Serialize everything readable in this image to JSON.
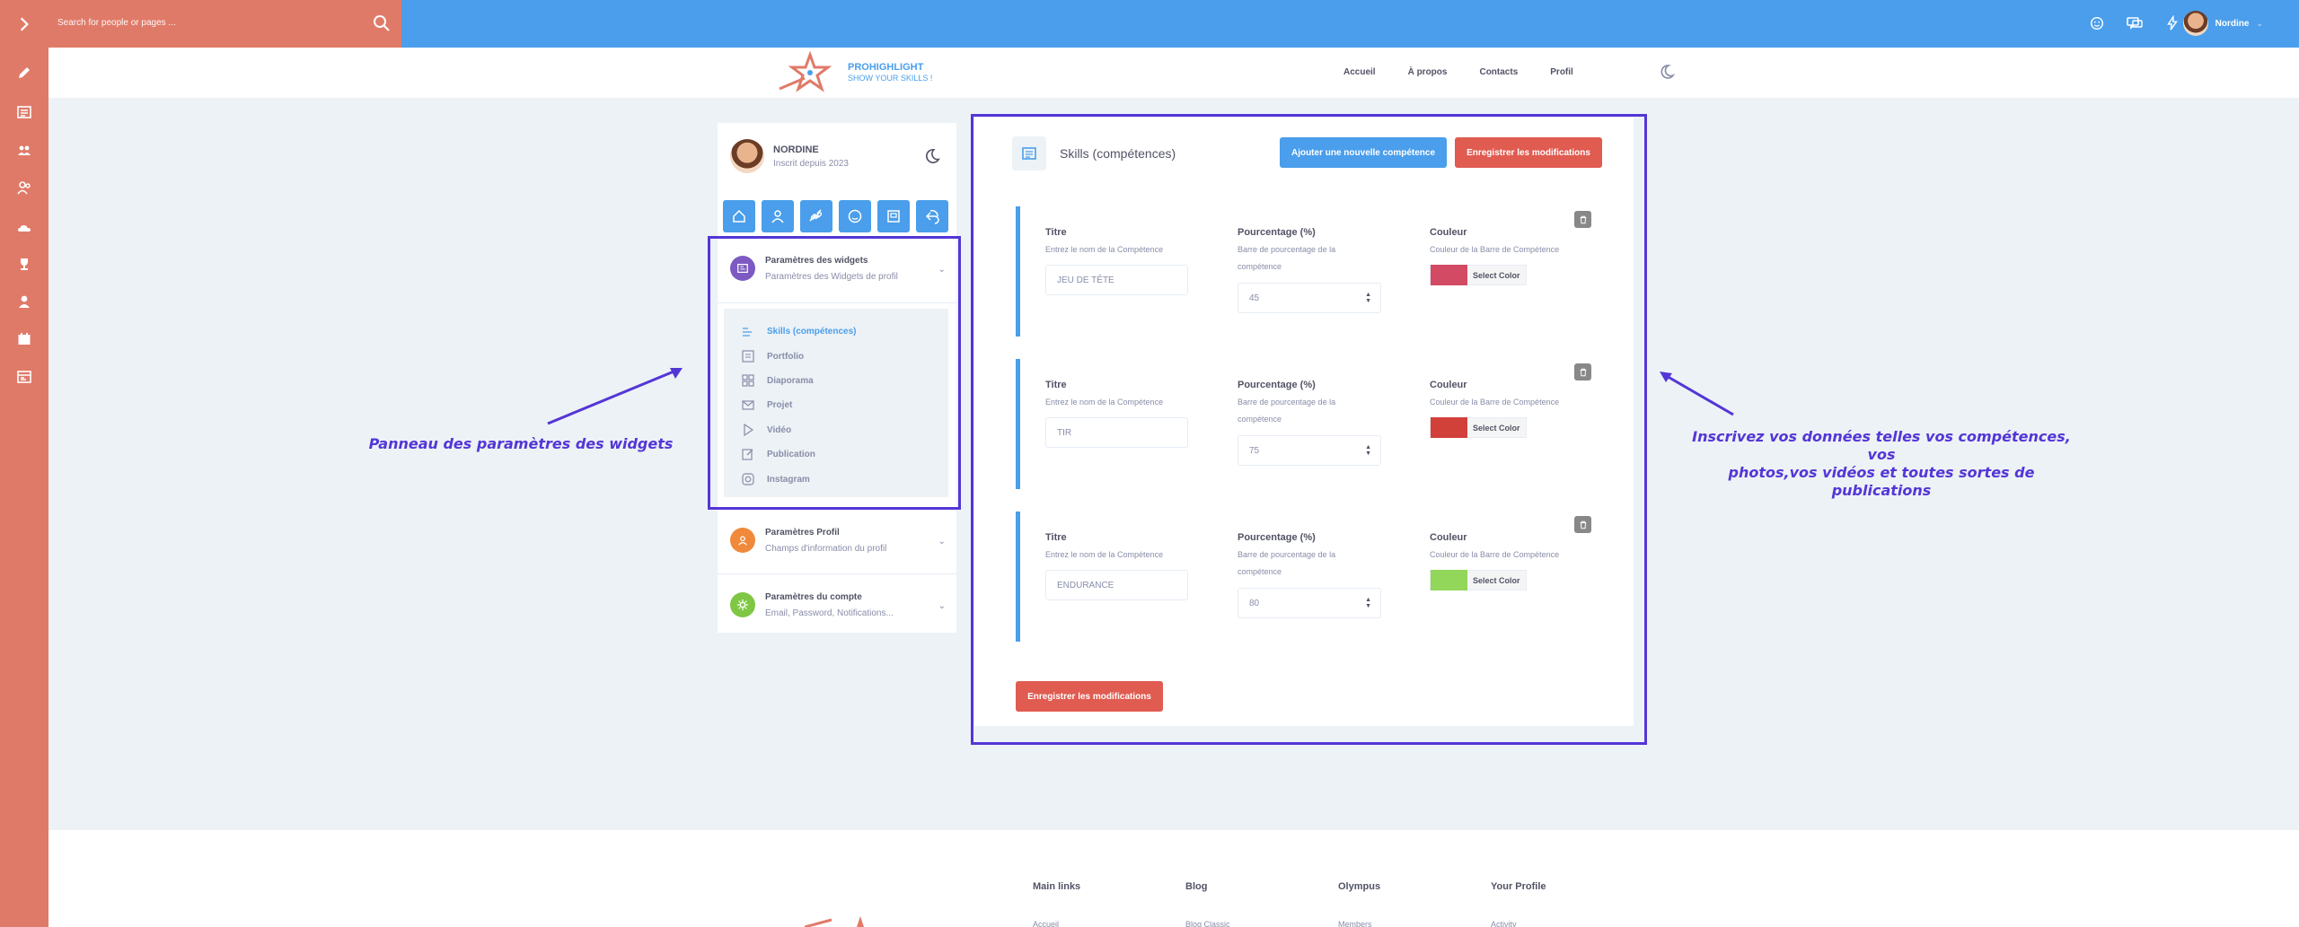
{
  "topbar": {
    "search_placeholder": "Search for people or pages ...",
    "user_name": "Nordine",
    "brand_color": "#4a9eeb",
    "accent_color": "#e07a68"
  },
  "header": {
    "brand_name": "PROHIGHLIGHT",
    "brand_tagline": "SHOW YOUR SKILLS !",
    "nav": [
      "Accueil",
      "À propos",
      "Contacts",
      "Profil"
    ]
  },
  "profile": {
    "name": "NORDINE",
    "since": "Inscrit depuis 2023"
  },
  "widgets_panel": {
    "title": "Paramètres des widgets",
    "subtitle": "Paramètres des Widgets de profil",
    "items": [
      "Skills (compétences)",
      "Portfolio",
      "Diaporama",
      "Projet",
      "Vidéo",
      "Publication",
      "Instagram"
    ],
    "active_index": 0
  },
  "profile_settings": {
    "title": "Paramètres Profil",
    "subtitle": "Champs d'information du profil"
  },
  "account_settings": {
    "title": "Paramètres du compte",
    "subtitle": "Email, Password, Notifications..."
  },
  "skills": {
    "title": "Skills (compétences)",
    "add_button": "Ajouter une nouvelle compétence",
    "save_button": "Enregistrer les modifications",
    "labels": {
      "title_label": "Titre",
      "title_hint": "Entrez le nom de la Compétence",
      "percent_label": "Pourcentage (%)",
      "percent_hint_1": "Barre de pourcentage de la",
      "percent_hint_2": "compétence",
      "color_label": "Couleur",
      "color_hint": "Couleur de la Barre de Compétence",
      "select_color": "Select Color"
    },
    "entries": [
      {
        "title": "JEU DE TÊTE",
        "percent": "45",
        "color": "#d24a64"
      },
      {
        "title": "TIR",
        "percent": "75",
        "color": "#d2403a"
      },
      {
        "title": "ENDURANCE",
        "percent": "80",
        "color": "#92d65a"
      }
    ]
  },
  "annotations": {
    "left": "Panneau des paramètres des widgets",
    "right_line1": "Inscrivez vos données telles vos compétences, vos",
    "right_line2": "photos,vos vidéos et toutes sortes de publications"
  },
  "footer": {
    "columns": [
      {
        "title": "Main links",
        "first": "Accueil"
      },
      {
        "title": "Blog",
        "first": "Blog Classic"
      },
      {
        "title": "Olympus",
        "first": "Members"
      },
      {
        "title": "Your Profile",
        "first": "Activity"
      }
    ]
  }
}
